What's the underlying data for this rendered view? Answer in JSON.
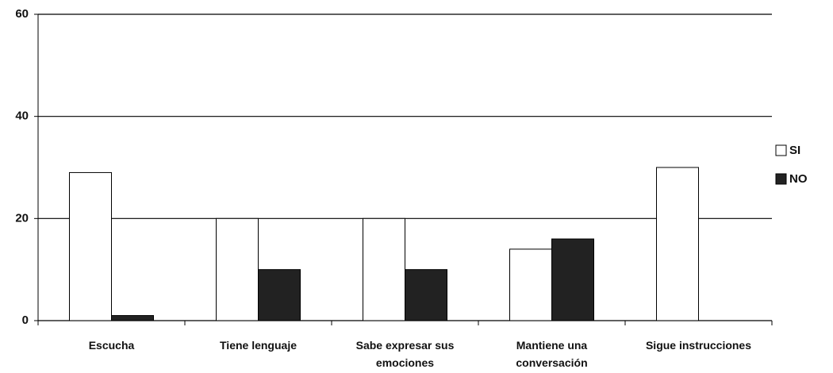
{
  "chart_data": {
    "type": "bar",
    "categories": [
      "Escucha",
      "Tiene lenguaje",
      "Sabe expresar sus emociones",
      "Mantiene una conversación",
      "Sigue instrucciones"
    ],
    "series": [
      {
        "name": "SI",
        "color": "#ffffff",
        "values": [
          29,
          20,
          20,
          14,
          30
        ]
      },
      {
        "name": "NO",
        "color": "#222222",
        "values": [
          1,
          10,
          10,
          16,
          0
        ]
      }
    ],
    "ylim": [
      0,
      60
    ],
    "yticks": [
      0,
      20,
      40,
      60
    ],
    "grid": true,
    "legend": "right"
  }
}
